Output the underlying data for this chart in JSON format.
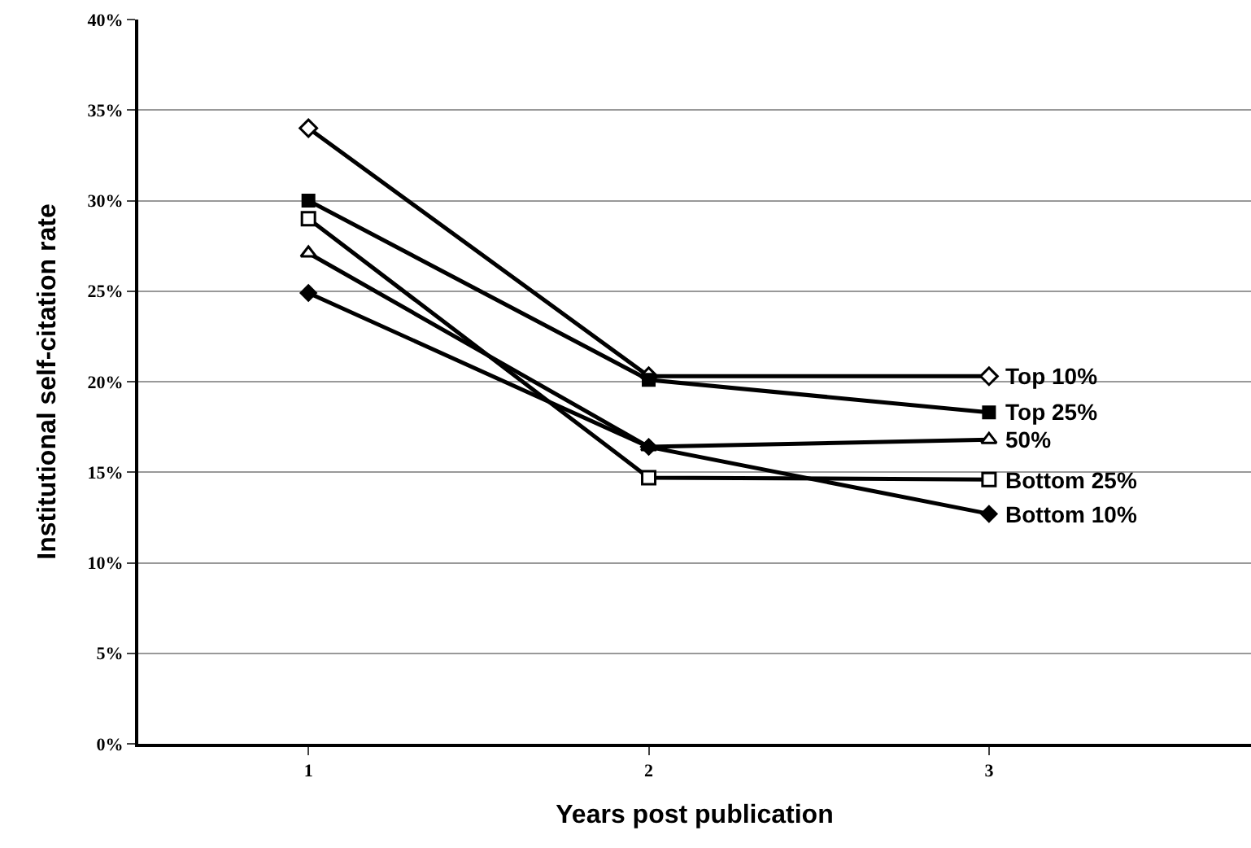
{
  "chart_data": {
    "type": "line",
    "xlabel": "Years post publication",
    "ylabel": "Institutional self-citation rate",
    "x": [
      1,
      2,
      3
    ],
    "xlim": [
      0.5,
      3.77
    ],
    "xticks": [
      1,
      2,
      3
    ],
    "ylim": [
      0,
      40
    ],
    "yticks": [
      {
        "value": 0,
        "label": "0%"
      },
      {
        "value": 5,
        "label": "5%"
      },
      {
        "value": 10,
        "label": "10%"
      },
      {
        "value": 15,
        "label": "15%"
      },
      {
        "value": 20,
        "label": "20%"
      },
      {
        "value": 25,
        "label": "25%"
      },
      {
        "value": 30,
        "label": "30%"
      },
      {
        "value": 35,
        "label": "35%"
      },
      {
        "value": 40,
        "label": "40%"
      }
    ],
    "grid": "y",
    "legend": false,
    "line_style": "solid",
    "series": [
      {
        "name": "Top 10%",
        "color": "#000000",
        "marker": "diamond-open",
        "values": [
          34.0,
          20.3,
          20.3
        ]
      },
      {
        "name": "Top 25%",
        "color": "#000000",
        "marker": "square",
        "values": [
          30.0,
          20.1,
          18.3
        ]
      },
      {
        "name": "50%",
        "color": "#000000",
        "marker": "triangle-open",
        "values": [
          27.1,
          16.4,
          16.8
        ]
      },
      {
        "name": "Bottom 25%",
        "color": "#000000",
        "marker": "square-open",
        "values": [
          29.0,
          14.7,
          14.6
        ]
      },
      {
        "name": "Bottom 10%",
        "color": "#000000",
        "marker": "diamond",
        "values": [
          24.9,
          16.4,
          12.7
        ]
      }
    ]
  }
}
